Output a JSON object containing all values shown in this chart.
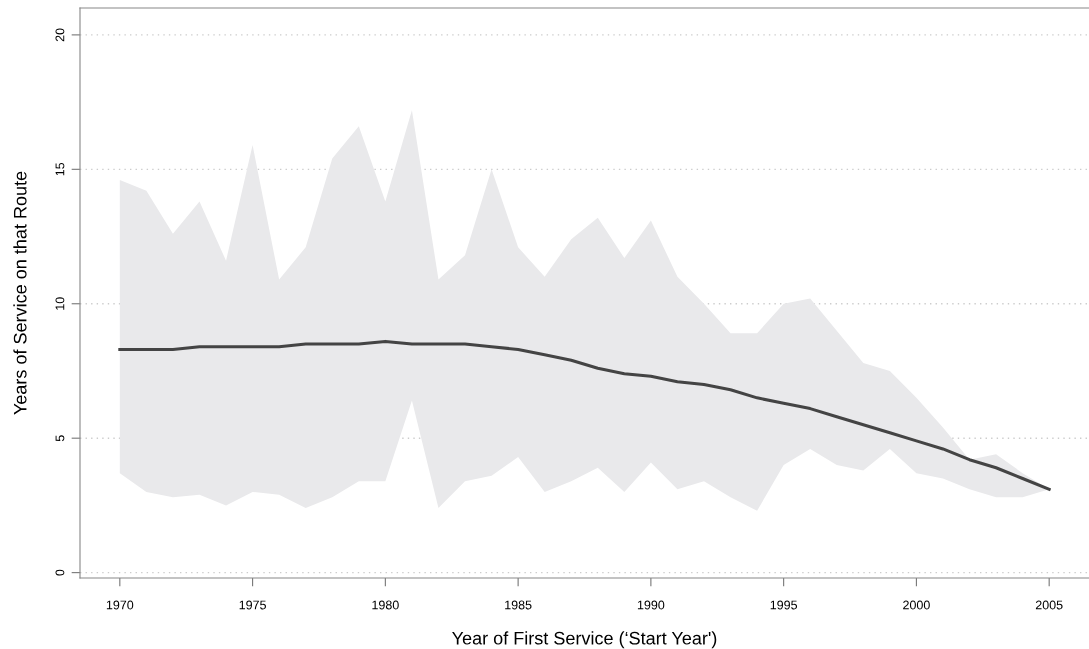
{
  "chart_data": {
    "type": "line",
    "xlabel": "Year of First Service (‘Start Year')",
    "ylabel": "Years of Service on that Route",
    "x": [
      1970,
      1971,
      1972,
      1973,
      1974,
      1975,
      1976,
      1977,
      1978,
      1979,
      1980,
      1981,
      1982,
      1983,
      1984,
      1985,
      1986,
      1987,
      1988,
      1989,
      1990,
      1991,
      1992,
      1993,
      1994,
      1995,
      1996,
      1997,
      1998,
      1999,
      2000,
      2001,
      2002,
      2003,
      2004,
      2005
    ],
    "series": [
      {
        "color": "#444444",
        "values": [
          8.3,
          8.3,
          8.3,
          8.4,
          8.4,
          8.4,
          8.4,
          8.5,
          8.5,
          8.5,
          8.6,
          8.5,
          8.5,
          8.5,
          8.4,
          8.3,
          8.1,
          7.9,
          7.6,
          7.4,
          7.3,
          7.1,
          7.0,
          6.8,
          6.5,
          6.3,
          6.1,
          5.8,
          5.5,
          5.2,
          4.9,
          4.6,
          4.2,
          3.9,
          3.5,
          3.1
        ],
        "upper": [
          14.6,
          14.2,
          12.6,
          13.8,
          11.6,
          15.9,
          10.9,
          12.1,
          15.4,
          16.6,
          13.8,
          17.2,
          10.9,
          11.8,
          15.0,
          12.1,
          11.0,
          12.4,
          13.2,
          11.7,
          13.1,
          11.0,
          10.0,
          8.9,
          8.9,
          10.0,
          10.2,
          9.0,
          7.8,
          7.5,
          6.5,
          5.4,
          4.2,
          4.4,
          3.7,
          3.1
        ],
        "lower": [
          3.7,
          3.0,
          2.8,
          2.9,
          2.5,
          3.0,
          2.9,
          2.4,
          2.8,
          3.4,
          3.4,
          6.4,
          2.4,
          3.4,
          3.6,
          4.3,
          3.0,
          3.4,
          3.9,
          3.0,
          4.1,
          3.1,
          3.4,
          2.8,
          2.3,
          4.0,
          4.6,
          4.0,
          3.8,
          4.6,
          3.7,
          3.5,
          3.1,
          2.8,
          2.8,
          3.1
        ]
      }
    ],
    "xlim": [
      1968.5,
      2006.5
    ],
    "xticks": [
      1970,
      1975,
      1980,
      1985,
      1990,
      1995,
      2000,
      2005
    ],
    "ylim": [
      -0.2,
      21.0
    ],
    "yticks": [
      0,
      5,
      10,
      15,
      20
    ],
    "grid": "y",
    "line_style": "solid",
    "marker": "none"
  }
}
